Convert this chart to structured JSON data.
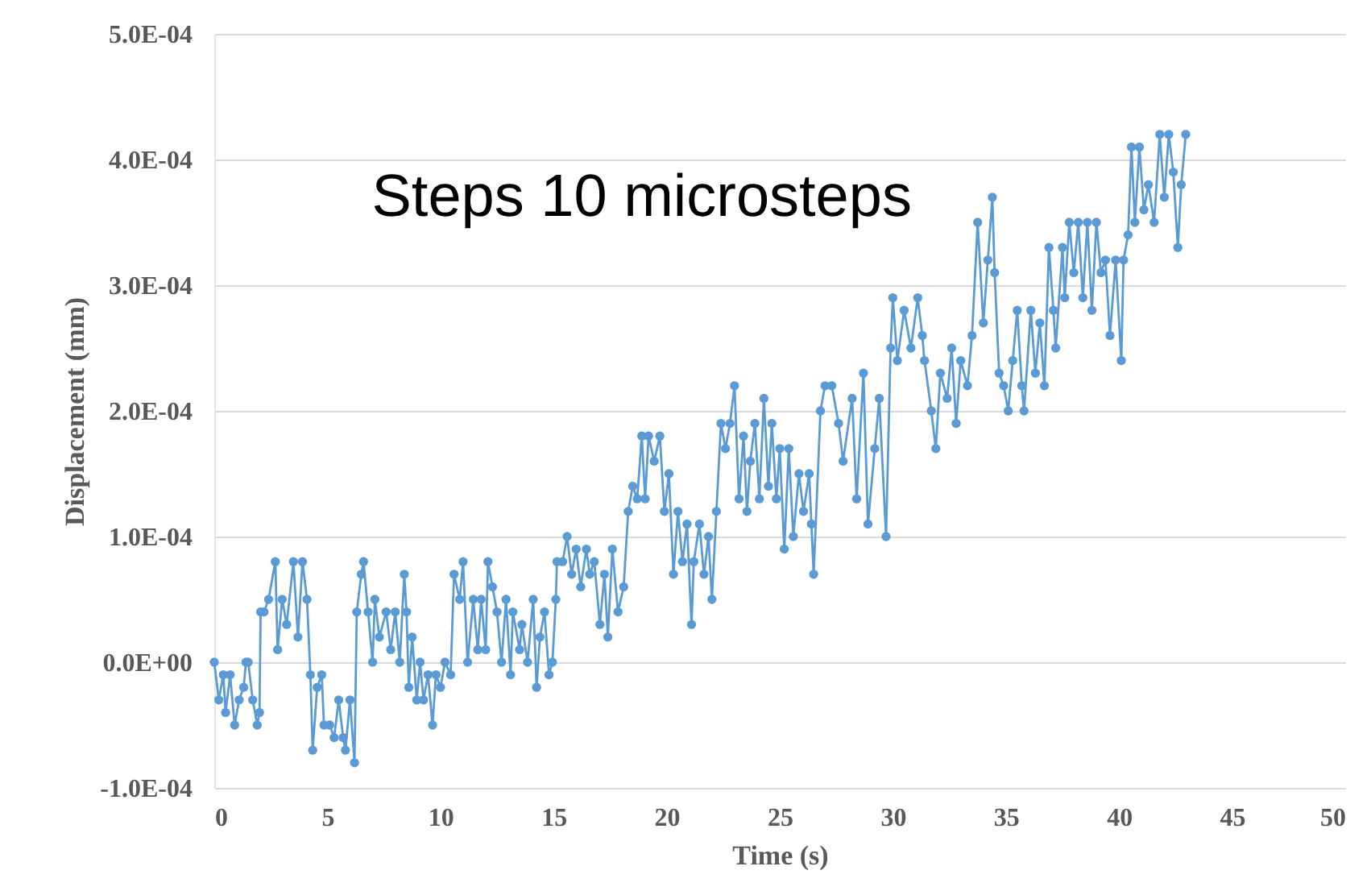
{
  "chart_data": {
    "type": "line",
    "xlabel": "Time (s)",
    "ylabel": "Displacement (mm)",
    "annotations": [
      "Steps 10 microsteps"
    ],
    "x": [
      0,
      0.2,
      0.4,
      0.5,
      0.7,
      0.9,
      1.1,
      1.3,
      1.4,
      1.5,
      1.7,
      1.9,
      2.0,
      2.05,
      2.2,
      2.4,
      2.7,
      2.8,
      3.0,
      3.2,
      3.5,
      3.7,
      3.9,
      4.1,
      4.25,
      4.35,
      4.55,
      4.75,
      4.85,
      5.1,
      5.3,
      5.5,
      5.7,
      5.8,
      6.0,
      6.2,
      6.3,
      6.5,
      6.6,
      6.8,
      7.0,
      7.1,
      7.3,
      7.6,
      7.8,
      8.0,
      8.2,
      8.4,
      8.5,
      8.6,
      8.75,
      8.95,
      9.1,
      9.25,
      9.45,
      9.65,
      9.8,
      10.0,
      10.2,
      10.45,
      10.6,
      10.85,
      11.0,
      11.2,
      11.45,
      11.65,
      11.8,
      12.0,
      12.1,
      12.3,
      12.5,
      12.7,
      12.9,
      13.1,
      13.2,
      13.5,
      13.6,
      13.85,
      14.1,
      14.25,
      14.4,
      14.6,
      14.8,
      14.95,
      15.1,
      15.15,
      15.4,
      15.6,
      15.8,
      16.0,
      16.2,
      16.45,
      16.6,
      16.8,
      17.05,
      17.25,
      17.4,
      17.6,
      17.85,
      18.1,
      18.3,
      18.5,
      18.7,
      18.9,
      19.05,
      19.2,
      19.45,
      19.7,
      19.9,
      20.1,
      20.3,
      20.5,
      20.7,
      20.9,
      21.1,
      21.2,
      21.45,
      21.65,
      21.85,
      22.0,
      22.2,
      22.4,
      22.6,
      22.8,
      23.0,
      23.2,
      23.4,
      23.55,
      23.7,
      23.9,
      24.1,
      24.3,
      24.5,
      24.65,
      24.85,
      25.0,
      25.2,
      25.4,
      25.6,
      25.85,
      26.05,
      26.3,
      26.4,
      26.5,
      26.8,
      27.0,
      27.3,
      27.6,
      27.8,
      28.2,
      28.4,
      28.7,
      28.9,
      29.2,
      29.4,
      29.7,
      29.9,
      30.0,
      30.2,
      30.5,
      30.8,
      31.1,
      31.3,
      31.4,
      31.7,
      31.9,
      32.1,
      32.4,
      32.6,
      32.8,
      33.0,
      33.3,
      33.5,
      33.75,
      34.0,
      34.2,
      34.4,
      34.5,
      34.7,
      34.9,
      35.1,
      35.3,
      35.5,
      35.7,
      35.8,
      36.1,
      36.3,
      36.5,
      36.7,
      36.9,
      37.1,
      37.2,
      37.5,
      37.6,
      37.8,
      38.0,
      38.2,
      38.4,
      38.6,
      38.8,
      39.0,
      39.2,
      39.4,
      39.6,
      39.85,
      40.1,
      40.2,
      40.4,
      40.55,
      40.7,
      40.9,
      41.1,
      41.3,
      41.55,
      41.8,
      42.0,
      42.2,
      42.4,
      42.6,
      42.75,
      42.95
    ],
    "series": [
      {
        "color": "#5b9bd5",
        "values": [
          0,
          -3e-05,
          -1e-05,
          -4e-05,
          -1e-05,
          -5e-05,
          -3e-05,
          -2e-05,
          0,
          0,
          -3e-05,
          -5e-05,
          -4e-05,
          4e-05,
          4e-05,
          5e-05,
          8e-05,
          1e-05,
          5e-05,
          3e-05,
          8e-05,
          2e-05,
          8e-05,
          5e-05,
          -1e-05,
          -7e-05,
          -2e-05,
          -1e-05,
          -5e-05,
          -5e-05,
          -6e-05,
          -3e-05,
          -6e-05,
          -7e-05,
          -3e-05,
          -8e-05,
          4e-05,
          7e-05,
          8e-05,
          4e-05,
          0,
          5e-05,
          2e-05,
          4e-05,
          1e-05,
          4e-05,
          0,
          7e-05,
          4e-05,
          -2e-05,
          2e-05,
          -3e-05,
          0,
          -3e-05,
          -1e-05,
          -5e-05,
          -1e-05,
          -2e-05,
          0,
          -1e-05,
          7e-05,
          5e-05,
          8e-05,
          0,
          5e-05,
          1e-05,
          5e-05,
          1e-05,
          8e-05,
          6e-05,
          4e-05,
          0,
          5e-05,
          -1e-05,
          4e-05,
          1e-05,
          3e-05,
          0,
          5e-05,
          -2e-05,
          2e-05,
          4e-05,
          -1e-05,
          0,
          5e-05,
          8e-05,
          8e-05,
          0.0001,
          7e-05,
          9e-05,
          6e-05,
          9e-05,
          7e-05,
          8e-05,
          3e-05,
          7e-05,
          2e-05,
          9e-05,
          4e-05,
          6e-05,
          0.00012,
          0.00014,
          0.00013,
          0.00018,
          0.00013,
          0.00018,
          0.00016,
          0.00018,
          0.00012,
          0.00015,
          7e-05,
          0.00012,
          8e-05,
          0.00011,
          3e-05,
          8e-05,
          0.00011,
          7e-05,
          0.0001,
          5e-05,
          0.00012,
          0.00019,
          0.00017,
          0.00019,
          0.00022,
          0.00013,
          0.00018,
          0.00012,
          0.00016,
          0.00019,
          0.00013,
          0.00021,
          0.00014,
          0.00019,
          0.00013,
          0.00017,
          9e-05,
          0.00017,
          0.0001,
          0.00015,
          0.00012,
          0.00015,
          0.00011,
          7e-05,
          0.0002,
          0.00022,
          0.00022,
          0.00019,
          0.00016,
          0.00021,
          0.00013,
          0.00023,
          0.00011,
          0.00017,
          0.00021,
          0.0001,
          0.00025,
          0.00029,
          0.00024,
          0.00028,
          0.00025,
          0.00029,
          0.00026,
          0.00024,
          0.0002,
          0.00017,
          0.00023,
          0.00021,
          0.00025,
          0.00019,
          0.00024,
          0.00022,
          0.00026,
          0.00035,
          0.00027,
          0.00032,
          0.00037,
          0.00031,
          0.00023,
          0.00022,
          0.0002,
          0.00024,
          0.00028,
          0.00022,
          0.0002,
          0.00028,
          0.00023,
          0.00027,
          0.00022,
          0.00033,
          0.00028,
          0.00025,
          0.00033,
          0.00029,
          0.00035,
          0.00031,
          0.00035,
          0.00029,
          0.00035,
          0.00028,
          0.00035,
          0.00031,
          0.00032,
          0.00026,
          0.00032,
          0.00024,
          0.00032,
          0.00034,
          0.00041,
          0.00035,
          0.00041,
          0.00036,
          0.00038,
          0.00035,
          0.00042,
          0.00037,
          0.00042,
          0.00039,
          0.00033,
          0.00038,
          0.00042
        ]
      }
    ],
    "xlim": [
      0,
      50
    ],
    "xticks": [
      0,
      5,
      10,
      15,
      20,
      25,
      30,
      35,
      40,
      45,
      50
    ],
    "ylim": [
      -0.0001,
      0.0005
    ],
    "yticks": [
      {
        "value": -0.0001,
        "label": "-1.0E-04"
      },
      {
        "value": 0,
        "label": "0.0E+00"
      },
      {
        "value": 0.0001,
        "label": "1.0E-04"
      },
      {
        "value": 0.0002,
        "label": "2.0E-04"
      },
      {
        "value": 0.0003,
        "label": "3.0E-04"
      },
      {
        "value": 0.0004,
        "label": "4.0E-04"
      },
      {
        "value": 0.0005,
        "label": "5.0E-04"
      }
    ],
    "grid": "y",
    "marker": "circle",
    "line_style": "solid"
  }
}
